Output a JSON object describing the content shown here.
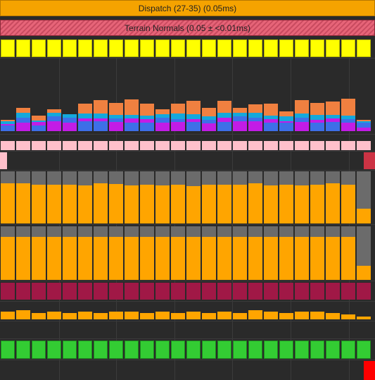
{
  "header": {
    "dispatch_label": "Dispatch (27-35) (0.05ms)",
    "terrain_label": "Terrain Normals (0.05 ± <0.01ms)"
  },
  "colors": {
    "background": "#2a2a2a",
    "dispatch": "#f5a300",
    "terrain": "#e66478",
    "yellow": "#ffff00",
    "pink": "#ffc0cb",
    "orange": "#ffa500",
    "gray": "#6b6b6b",
    "crimson": "#a01846",
    "green": "#33cc33",
    "red": "#ff0000",
    "stack_blue": "#3d6fe8",
    "stack_magenta": "#c21ce6",
    "stack_cyan": "#14a8dc",
    "stack_orange": "#f08040"
  },
  "frames": {
    "count": 24,
    "stacked_values": [
      [
        0.35,
        0.1,
        0.15,
        0.1
      ],
      [
        0.5,
        0.3,
        0.3,
        0.3
      ],
      [
        0.35,
        0.2,
        0.1,
        0.3
      ],
      [
        0.6,
        0.3,
        0.2,
        0.2
      ],
      [
        0.5,
        0.3,
        0.2,
        0.0
      ],
      [
        0.6,
        0.15,
        0.3,
        0.6
      ],
      [
        0.6,
        0.15,
        0.3,
        0.8
      ],
      [
        0.55,
        0.2,
        0.2,
        0.7
      ],
      [
        0.5,
        0.25,
        0.2,
        0.9
      ],
      [
        0.5,
        0.2,
        0.2,
        0.7
      ],
      [
        0.5,
        0.3,
        0.2,
        0.3
      ],
      [
        0.55,
        0.15,
        0.35,
        0.6
      ],
      [
        0.55,
        0.15,
        0.3,
        0.8
      ],
      [
        0.45,
        0.2,
        0.2,
        0.5
      ],
      [
        0.55,
        0.25,
        0.3,
        0.7
      ],
      [
        0.6,
        0.3,
        0.2,
        0.3
      ],
      [
        0.6,
        0.2,
        0.3,
        0.5
      ],
      [
        0.5,
        0.2,
        0.2,
        0.7
      ],
      [
        0.5,
        0.1,
        0.3,
        0.3
      ],
      [
        0.55,
        0.25,
        0.25,
        0.8
      ],
      [
        0.5,
        0.15,
        0.3,
        0.7
      ],
      [
        0.55,
        0.2,
        0.2,
        0.8
      ],
      [
        0.5,
        0.2,
        0.2,
        1.0
      ],
      [
        0.2,
        0.3,
        0.1,
        0.1
      ]
    ],
    "orange_tall_values": [
      0.95,
      0.95,
      0.92,
      0.92,
      0.92,
      0.9,
      0.95,
      0.93,
      0.9,
      0.92,
      0.9,
      0.92,
      0.88,
      0.92,
      0.92,
      0.92,
      0.95,
      0.9,
      0.92,
      0.9,
      0.92,
      0.95,
      0.92,
      0.35
    ],
    "orange_mid_values": [
      0.92,
      0.92,
      0.92,
      0.92,
      0.92,
      0.92,
      0.92,
      0.92,
      0.92,
      0.92,
      0.92,
      0.92,
      0.92,
      0.92,
      0.92,
      0.92,
      0.92,
      0.92,
      0.92,
      0.92,
      0.92,
      0.92,
      0.92,
      0.3
    ],
    "orange_small_values": [
      0.5,
      0.6,
      0.4,
      0.5,
      0.4,
      0.5,
      0.4,
      0.5,
      0.5,
      0.4,
      0.5,
      0.4,
      0.5,
      0.4,
      0.5,
      0.4,
      0.6,
      0.5,
      0.4,
      0.5,
      0.5,
      0.4,
      0.3,
      0.1
    ]
  }
}
